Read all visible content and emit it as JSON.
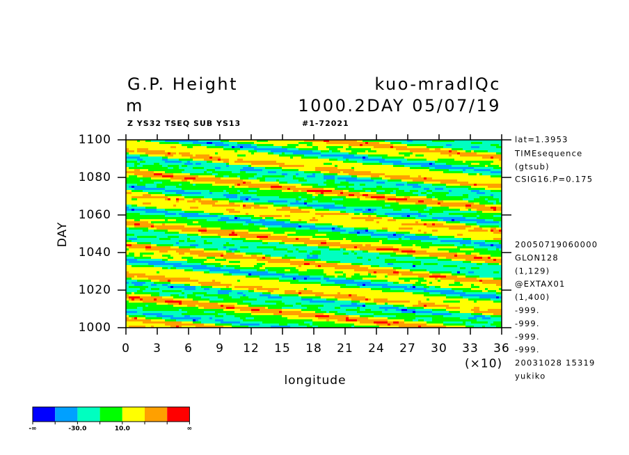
{
  "chart_data": {
    "type": "contour",
    "title_left": "G.P. Height",
    "title_right": "kuo-mradlQc",
    "units": "m",
    "title_right2": "1000.2DAY 05/07/19",
    "subtitle_left": "Z YS32 TSEQ SUB YS13",
    "subtitle_right": "#1-72021",
    "x_label": "longitude",
    "x_multiplier": "(×10)",
    "y_label": "DAY",
    "xlim": [
      0,
      36
    ],
    "xticks": [
      0,
      3,
      6,
      9,
      12,
      15,
      18,
      21,
      24,
      27,
      30,
      33,
      36
    ],
    "ylim": [
      1000,
      1100
    ],
    "yticks": [
      1000,
      1020,
      1040,
      1060,
      1080,
      1100
    ],
    "notes_top": [
      "lat=1.3953",
      "TIMEsequence",
      "(gtsub)",
      "CSIG16.P=0.175"
    ],
    "notes_bottom": [
      "20050719060000",
      "GLON128",
      "(1,129)",
      "@EXTAX01",
      "(1,400)",
      "-999.",
      "-999.",
      "-999.",
      "-999."
    ],
    "footer": [
      "20031028  15319",
      "yukiko"
    ],
    "colorbar": {
      "colors": [
        "#0000ff",
        "#00a0ff",
        "#00ffc0",
        "#00ff00",
        "#ffff00",
        "#ffa000",
        "#ff0000"
      ],
      "boundary_labels": [
        "-∞",
        null,
        "-30.0",
        null,
        "10.0",
        null,
        null,
        "∞"
      ]
    }
  }
}
